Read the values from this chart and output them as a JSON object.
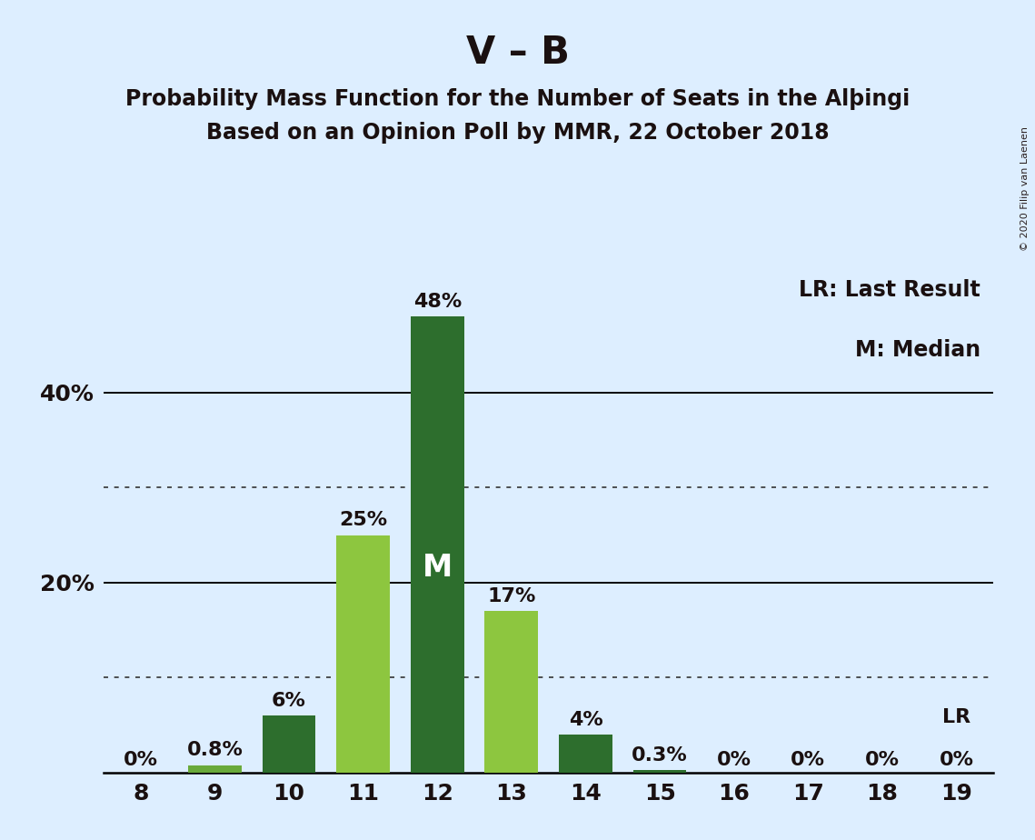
{
  "title": "V – B",
  "subtitle1": "Probability Mass Function for the Number of Seats in the Alþingi",
  "subtitle2": "Based on an Opinion Poll by MMR, 22 October 2018",
  "copyright": "© 2020 Filip van Laenen",
  "seats": [
    8,
    9,
    10,
    11,
    12,
    13,
    14,
    15,
    16,
    17,
    18,
    19
  ],
  "probabilities": [
    0.0,
    0.8,
    6.0,
    25.0,
    48.0,
    17.0,
    4.0,
    0.3,
    0.0,
    0.0,
    0.0,
    0.0
  ],
  "labels": [
    "0%",
    "0.8%",
    "6%",
    "25%",
    "48%",
    "17%",
    "4%",
    "0.3%",
    "0%",
    "0%",
    "0%",
    "0%"
  ],
  "bar_colors": [
    "#6aaa3a",
    "#6aaa3a",
    "#2d6e2d",
    "#8dc63f",
    "#2d6e2d",
    "#8dc63f",
    "#2d6e2d",
    "#2d6e2d",
    "#2d6e2d",
    "#2d6e2d",
    "#2d6e2d",
    "#2d6e2d"
  ],
  "median_bar": 12,
  "lr_bar": 19,
  "median_label": "M",
  "lr_label": "LR",
  "legend_lr": "LR: Last Result",
  "legend_m": "M: Median",
  "background_color": "#ddeeff",
  "ylim": [
    0,
    53
  ],
  "solid_gridlines": [
    20.0,
    40.0
  ],
  "dotted_gridlines": [
    10.0,
    30.0
  ],
  "ytick_positions": [
    20.0,
    40.0
  ],
  "ytick_labels": [
    "20%",
    "40%"
  ],
  "title_fontsize": 30,
  "subtitle_fontsize": 17,
  "bar_label_fontsize": 16,
  "axis_tick_fontsize": 18,
  "legend_fontsize": 17,
  "median_label_color": "#ffffff",
  "median_label_fontsize": 24,
  "text_color": "#1a1010",
  "copyright_fontsize": 8
}
